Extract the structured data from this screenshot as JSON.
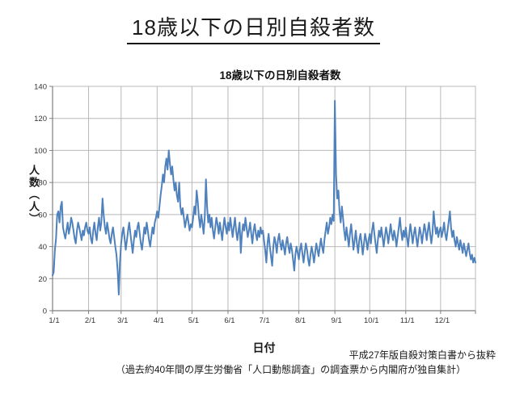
{
  "page": {
    "title": "18歳以下の日別自殺者数"
  },
  "chart": {
    "title": "18歳以下の日別自殺者数",
    "y_axis_label": "人数（人）",
    "x_axis_label": "日付",
    "source_note": "平成27年版自殺対策白書から抜粋",
    "source_detail": "（過去約40年間の厚生労働省「人口動態調査」の調査票から内閣府が独自集計）"
  },
  "chart_data": {
    "type": "line",
    "title": "18歳以下の日別自殺者数",
    "xlabel": "日付",
    "ylabel": "人数（人）",
    "ylim": [
      0,
      140
    ],
    "y_ticks": [
      0,
      20,
      40,
      60,
      80,
      100,
      120,
      140
    ],
    "x_tick_labels": [
      "1/1",
      "2/1",
      "3/1",
      "4/1",
      "5/1",
      "6/1",
      "7/1",
      "8/1",
      "9/1",
      "10/1",
      "11/1",
      "12/1"
    ],
    "x_tick_days": [
      1,
      32,
      60,
      91,
      121,
      152,
      182,
      213,
      244,
      274,
      305,
      335
    ],
    "x_unit": "day_of_year",
    "grid": true,
    "legend": "none",
    "line_color": "#4F81BD",
    "grid_color": "#b8b8b8",
    "axis_color": "#7f7f7f",
    "notable_points": [
      {
        "date": "1/1",
        "value": 22
      },
      {
        "date": "2/27",
        "value": 10,
        "note": "year minimum dip"
      },
      {
        "date": "4/11",
        "value": 100,
        "note": "spring peak"
      },
      {
        "date": "9/1",
        "value": 131,
        "note": "year maximum spike"
      },
      {
        "date": "12/31",
        "value": 30
      }
    ],
    "values": [
      22,
      24,
      38,
      45,
      60,
      62,
      55,
      65,
      68,
      52,
      48,
      45,
      50,
      55,
      48,
      52,
      58,
      55,
      50,
      45,
      42,
      50,
      55,
      52,
      48,
      44,
      50,
      47,
      52,
      55,
      50,
      48,
      52,
      45,
      42,
      50,
      55,
      48,
      44,
      52,
      58,
      50,
      55,
      70,
      60,
      52,
      48,
      55,
      50,
      45,
      42,
      48,
      52,
      46,
      40,
      35,
      25,
      10,
      30,
      42,
      48,
      52,
      45,
      38,
      44,
      50,
      55,
      48,
      42,
      36,
      44,
      50,
      46,
      52,
      55,
      48,
      42,
      38,
      45,
      52,
      48,
      55,
      50,
      44,
      40,
      46,
      52,
      48,
      55,
      58,
      62,
      58,
      65,
      72,
      78,
      85,
      80,
      90,
      95,
      88,
      100,
      92,
      85,
      90,
      82,
      75,
      80,
      72,
      68,
      80,
      65,
      60,
      64,
      58,
      52,
      56,
      60,
      55,
      50,
      54,
      52,
      58,
      65,
      60,
      75,
      68,
      58,
      52,
      60,
      55,
      48,
      58,
      82,
      65,
      55,
      60,
      52,
      58,
      50,
      45,
      52,
      58,
      54,
      48,
      55,
      50,
      44,
      52,
      58,
      52,
      48,
      55,
      50,
      58,
      52,
      46,
      52,
      58,
      50,
      44,
      50,
      55,
      36,
      48,
      54,
      50,
      58,
      52,
      46,
      50,
      55,
      48,
      42,
      50,
      54,
      48,
      44,
      50,
      46,
      52,
      48,
      50,
      44,
      38,
      30,
      42,
      48,
      40,
      34,
      28,
      40,
      46,
      42,
      36,
      44,
      48,
      42,
      38,
      44,
      40,
      35,
      42,
      46,
      40,
      36,
      42,
      38,
      32,
      25,
      35,
      40,
      36,
      32,
      38,
      42,
      36,
      30,
      36,
      42,
      38,
      32,
      28,
      35,
      40,
      36,
      30,
      36,
      42,
      38,
      34,
      40,
      45,
      40,
      36,
      44,
      50,
      55,
      48,
      52,
      58,
      54,
      60,
      56,
      131,
      85,
      70,
      75,
      62,
      55,
      65,
      58,
      50,
      44,
      52,
      46,
      40,
      48,
      54,
      46,
      38,
      44,
      50,
      42,
      36,
      44,
      48,
      42,
      35,
      42,
      48,
      44,
      38,
      44,
      48,
      42,
      50,
      55,
      48,
      42,
      36,
      44,
      50,
      46,
      52,
      46,
      40,
      46,
      52,
      48,
      42,
      48,
      54,
      48,
      44,
      50,
      46,
      40,
      46,
      52,
      58,
      50,
      44,
      50,
      46,
      52,
      46,
      40,
      48,
      54,
      48,
      42,
      48,
      52,
      46,
      40,
      46,
      52,
      48,
      42,
      48,
      54,
      50,
      44,
      50,
      55,
      48,
      42,
      48,
      62,
      54,
      48,
      52,
      46,
      50,
      52,
      46,
      50,
      55,
      48,
      44,
      50,
      56,
      62,
      52,
      46,
      50,
      44,
      40,
      46,
      42,
      38,
      44,
      40,
      36,
      42,
      38,
      34,
      38,
      42,
      36,
      32,
      35,
      30,
      33,
      30
    ]
  }
}
